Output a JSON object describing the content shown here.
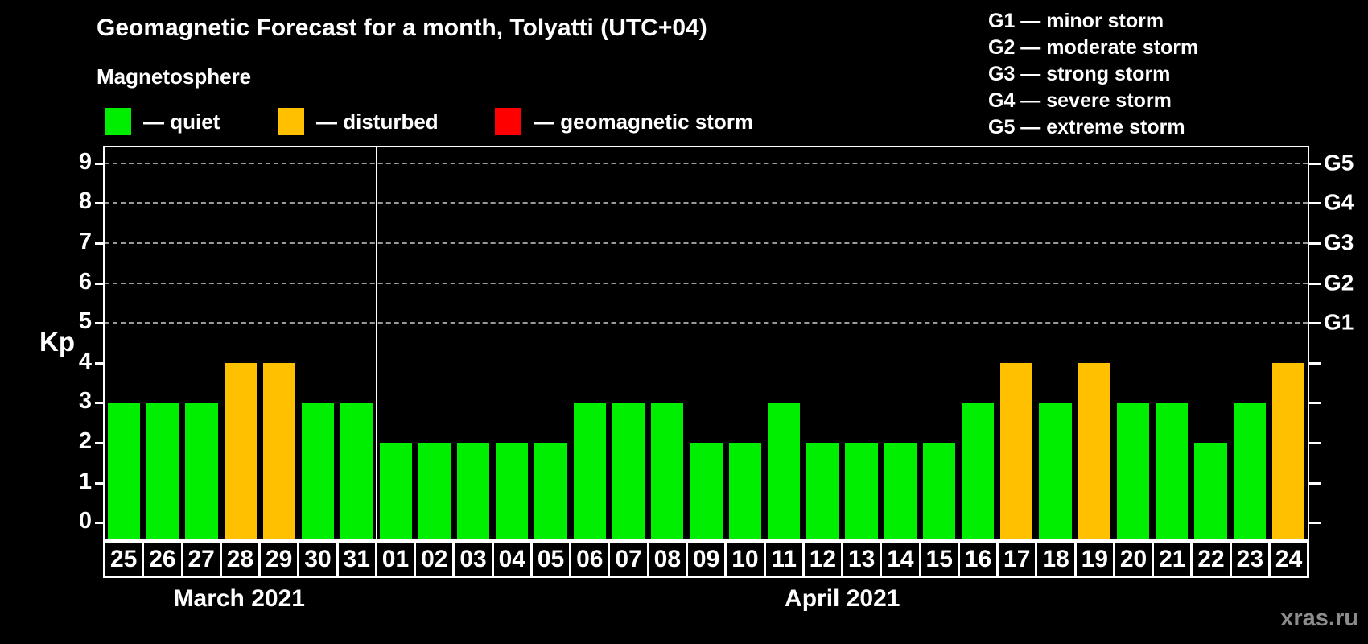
{
  "header": {
    "title": "Geomagnetic Forecast for a month, Tolyatti (UTC+04)",
    "subtitle": "Magnetosphere"
  },
  "legend": {
    "items": [
      {
        "key": "quiet",
        "label": "— quiet"
      },
      {
        "key": "disturbed",
        "label": "— disturbed"
      },
      {
        "key": "storm",
        "label": "— geomagnetic storm"
      }
    ]
  },
  "g_legend": {
    "items": [
      "G1 — minor storm",
      "G2 — moderate storm",
      "G3 — strong storm",
      "G4 — severe storm",
      "G5 — extreme storm"
    ]
  },
  "colors": {
    "quiet": "#00ee00",
    "disturbed": "#ffc000",
    "storm": "#ff0000",
    "grid": "#9a9a9a",
    "frame": "#ffffff"
  },
  "chart_data": {
    "type": "bar",
    "title": "Geomagnetic Forecast for a month, Tolyatti (UTC+04)",
    "ylabel": "Kp",
    "ylim": [
      -0.4,
      9.4
    ],
    "yticks": [
      0,
      1,
      2,
      3,
      4,
      5,
      6,
      7,
      8,
      9
    ],
    "gridlines_at": [
      5,
      6,
      7,
      8,
      9
    ],
    "grid": "dashed, only at storm levels 5-9",
    "legend_position": "top-left",
    "right_axis_labels": [
      {
        "kp": 5,
        "label": "G1"
      },
      {
        "kp": 6,
        "label": "G2"
      },
      {
        "kp": 7,
        "label": "G3"
      },
      {
        "kp": 8,
        "label": "G4"
      },
      {
        "kp": 9,
        "label": "G5"
      }
    ],
    "categories": [
      "25",
      "26",
      "27",
      "28",
      "29",
      "30",
      "31",
      "01",
      "02",
      "03",
      "04",
      "05",
      "06",
      "07",
      "08",
      "09",
      "10",
      "11",
      "12",
      "13",
      "14",
      "15",
      "16",
      "17",
      "18",
      "19",
      "20",
      "21",
      "22",
      "23",
      "24"
    ],
    "values": [
      3,
      3,
      3,
      4,
      4,
      3,
      3,
      2,
      2,
      2,
      2,
      2,
      3,
      3,
      3,
      2,
      2,
      3,
      2,
      2,
      2,
      2,
      3,
      4,
      3,
      4,
      3,
      3,
      2,
      3,
      4
    ],
    "statuses": [
      "quiet",
      "quiet",
      "quiet",
      "disturbed",
      "disturbed",
      "quiet",
      "quiet",
      "quiet",
      "quiet",
      "quiet",
      "quiet",
      "quiet",
      "quiet",
      "quiet",
      "quiet",
      "quiet",
      "quiet",
      "quiet",
      "quiet",
      "quiet",
      "quiet",
      "quiet",
      "quiet",
      "disturbed",
      "quiet",
      "disturbed",
      "quiet",
      "quiet",
      "quiet",
      "quiet",
      "disturbed"
    ],
    "month_groups": [
      {
        "label": "March 2021",
        "days": 7
      },
      {
        "label": "April 2021",
        "days": 24
      }
    ]
  },
  "watermark": "xras.ru"
}
